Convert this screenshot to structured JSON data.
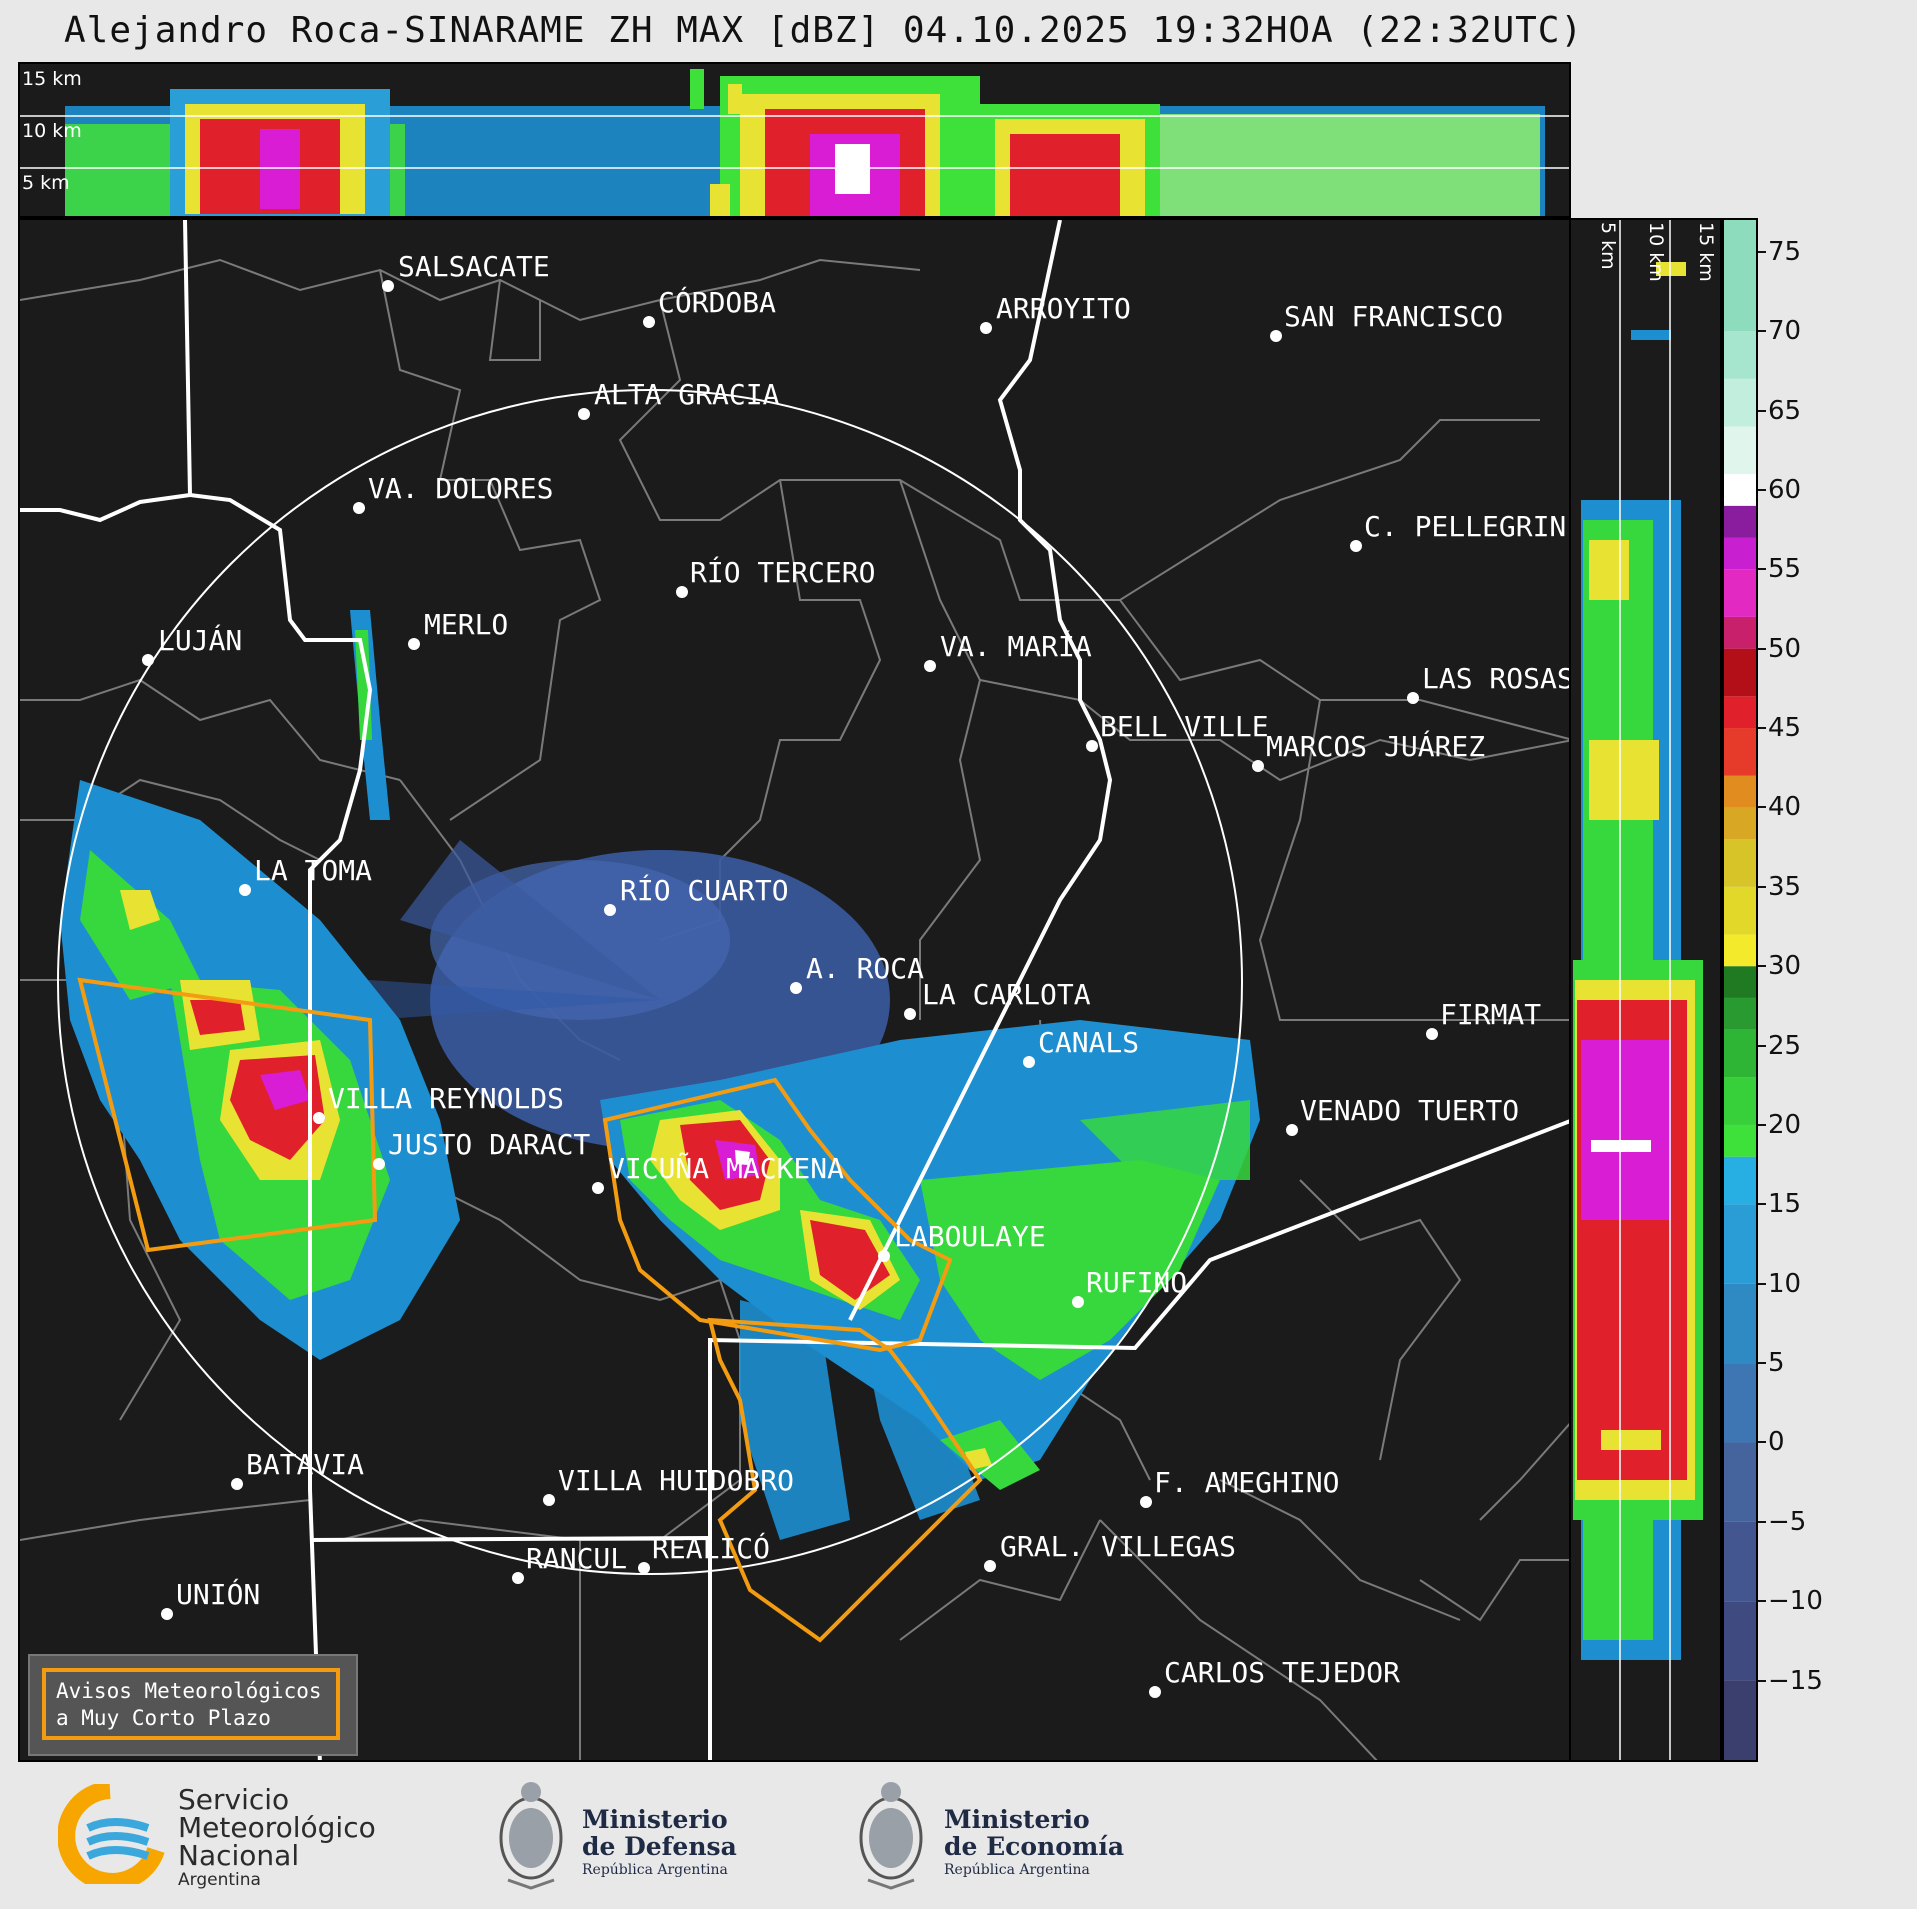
{
  "title": "Alejandro Roca-SINARAME ZH MAX [dBZ] 04.10.2025 19:32HOA (22:32UTC)",
  "top_panel": {
    "height_labels": [
      "15 km",
      "10 km",
      "5 km"
    ]
  },
  "side_panel": {
    "height_labels": [
      "5 km",
      "10 km",
      "15 km"
    ]
  },
  "colorbar": {
    "unit": "dBZ",
    "ticks": [
      "75",
      "70",
      "65",
      "60",
      "55",
      "50",
      "45",
      "40",
      "35",
      "30",
      "25",
      "20",
      "15",
      "10",
      "5",
      "0",
      "−5",
      "−10",
      "−15"
    ],
    "range": [
      -20,
      77
    ]
  },
  "cities": [
    {
      "name": "SALSACATE"
    },
    {
      "name": "CÓRDOBA"
    },
    {
      "name": "ARROYITO"
    },
    {
      "name": "SAN FRANCISCO"
    },
    {
      "name": "ALTA GRACIA"
    },
    {
      "name": "VA. DOLORES"
    },
    {
      "name": "C. PELLEGRINI"
    },
    {
      "name": "RÍO TERCERO"
    },
    {
      "name": "LUJÁN"
    },
    {
      "name": "MERLO"
    },
    {
      "name": "VA. MARÍA"
    },
    {
      "name": "LAS ROSAS"
    },
    {
      "name": "BELL VILLE"
    },
    {
      "name": "MARCOS JUÁREZ"
    },
    {
      "name": "LA TOMA"
    },
    {
      "name": "RÍO CUARTO"
    },
    {
      "name": "A. ROCA"
    },
    {
      "name": "LA CARLOTA"
    },
    {
      "name": "FIRMAT"
    },
    {
      "name": "CANALS"
    },
    {
      "name": "VILLA REYNOLDS"
    },
    {
      "name": "VENADO TUERTO"
    },
    {
      "name": "JUSTO DARACT"
    },
    {
      "name": "VICUÑA MACKENA"
    },
    {
      "name": "LABOULAYE"
    },
    {
      "name": "RUFINO"
    },
    {
      "name": "BATAVIA"
    },
    {
      "name": "VILLA HUIDOBRO"
    },
    {
      "name": "F. AMEGHINO"
    },
    {
      "name": "RANCUL"
    },
    {
      "name": "REALICÓ"
    },
    {
      "name": "GRAL. VILLEGAS"
    },
    {
      "name": "UNIÓN"
    },
    {
      "name": "CARLOS TEJEDOR"
    }
  ],
  "legend": {
    "line1": "Avisos Meteorológicos",
    "line2": "a Muy Corto Plazo",
    "color": "#f39c12"
  },
  "logos": {
    "smn": {
      "line1": "Servicio",
      "line2": "Meteorológico",
      "line3": "Nacional",
      "line4": "Argentina"
    },
    "defensa": {
      "line1": "Ministerio",
      "line2": "de Defensa",
      "line3": "República Argentina"
    },
    "economia": {
      "line1": "Ministerio",
      "line2": "de Economía",
      "line3": "República Argentina"
    }
  },
  "colors": {
    "background": "#1b1b1b",
    "border_lines": "#808080",
    "province_lines": "#ffffff",
    "warning": "#f39c12"
  }
}
